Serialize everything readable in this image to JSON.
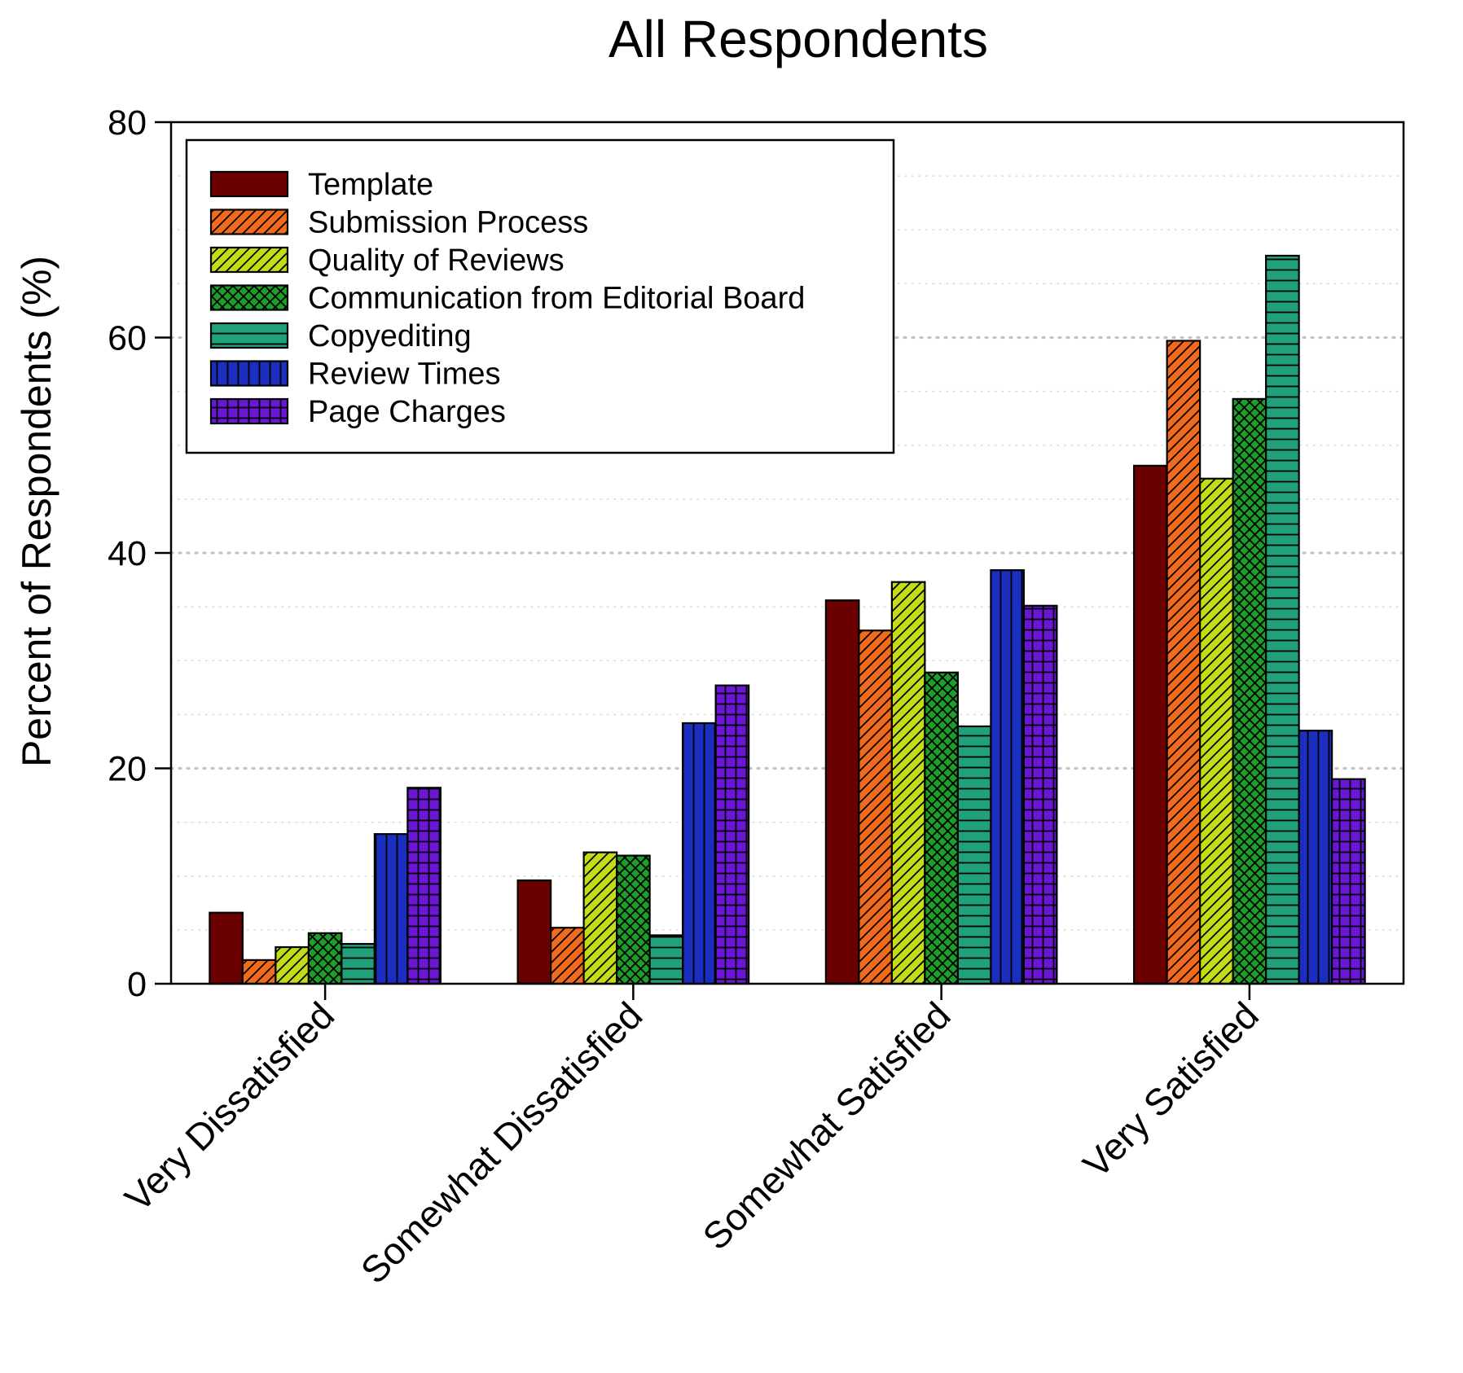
{
  "chart_data": {
    "type": "bar",
    "title": "All Respondents",
    "xlabel": "",
    "ylabel": "Percent of Respondents (%)",
    "ylim": [
      0,
      80
    ],
    "yticks": [
      0,
      20,
      40,
      60,
      80
    ],
    "grid": "horizontal dotted (major and minor)",
    "legend_position": "top-left",
    "categories": [
      "Very Dissatisfied",
      "Somewhat Dissatisfied",
      "Somewhat Satisfied",
      "Very Satisfied"
    ],
    "series": [
      {
        "name": "Template",
        "color": "#6b0000",
        "pattern": "solid",
        "values": [
          6.6,
          9.6,
          35.6,
          48.1
        ]
      },
      {
        "name": "Submission Process",
        "color": "#f26a1b",
        "pattern": "diagonal",
        "values": [
          2.2,
          5.2,
          32.8,
          59.7
        ]
      },
      {
        "name": "Quality of Reviews",
        "color": "#c3dc17",
        "pattern": "diagonal",
        "values": [
          3.4,
          12.2,
          37.3,
          46.9
        ]
      },
      {
        "name": "Communication from Editorial Board",
        "color": "#1f9d2a",
        "pattern": "crosshatch",
        "values": [
          4.7,
          11.9,
          28.9,
          54.3
        ]
      },
      {
        "name": "Copyediting",
        "color": "#21a07c",
        "pattern": "horizontal",
        "values": [
          3.7,
          4.5,
          23.9,
          67.6
        ]
      },
      {
        "name": "Review Times",
        "color": "#1a2ec0",
        "pattern": "vertical",
        "values": [
          13.9,
          24.2,
          38.4,
          23.5
        ]
      },
      {
        "name": "Page Charges",
        "color": "#6a16d4",
        "pattern": "grid",
        "values": [
          18.2,
          27.7,
          35.1,
          19.0
        ]
      }
    ]
  }
}
